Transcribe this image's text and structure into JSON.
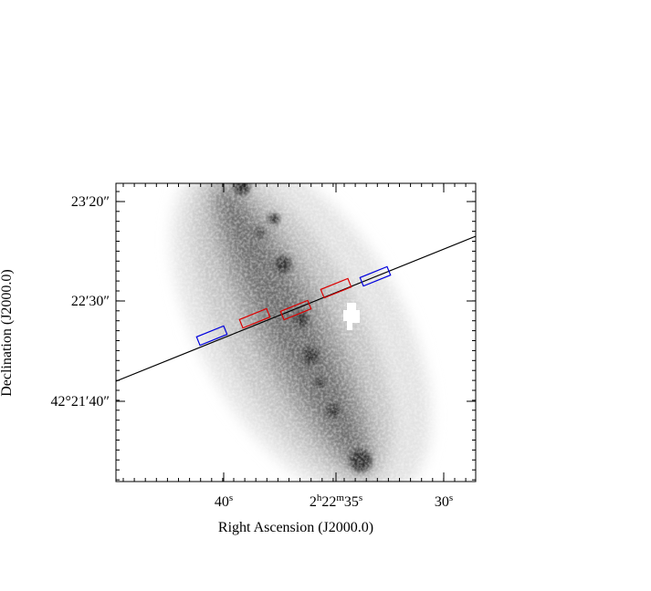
{
  "figure": {
    "x_axis_label": "Right Ascension (J2000.0)",
    "y_axis_label": "Declination (J2000.0)",
    "x_tick_labels": [
      [
        {
          "text": "40"
        },
        {
          "text": "s",
          "sup": true
        }
      ],
      [
        {
          "text": "2"
        },
        {
          "text": "h",
          "sup": true
        },
        {
          "text": "22"
        },
        {
          "text": "m",
          "sup": true
        },
        {
          "text": "35"
        },
        {
          "text": "s",
          "sup": true
        }
      ],
      [
        {
          "text": "30"
        },
        {
          "text": "s",
          "sup": true
        }
      ]
    ],
    "y_tick_labels": [
      "23′20″",
      "22′30″",
      "42°21′40″"
    ]
  }
}
